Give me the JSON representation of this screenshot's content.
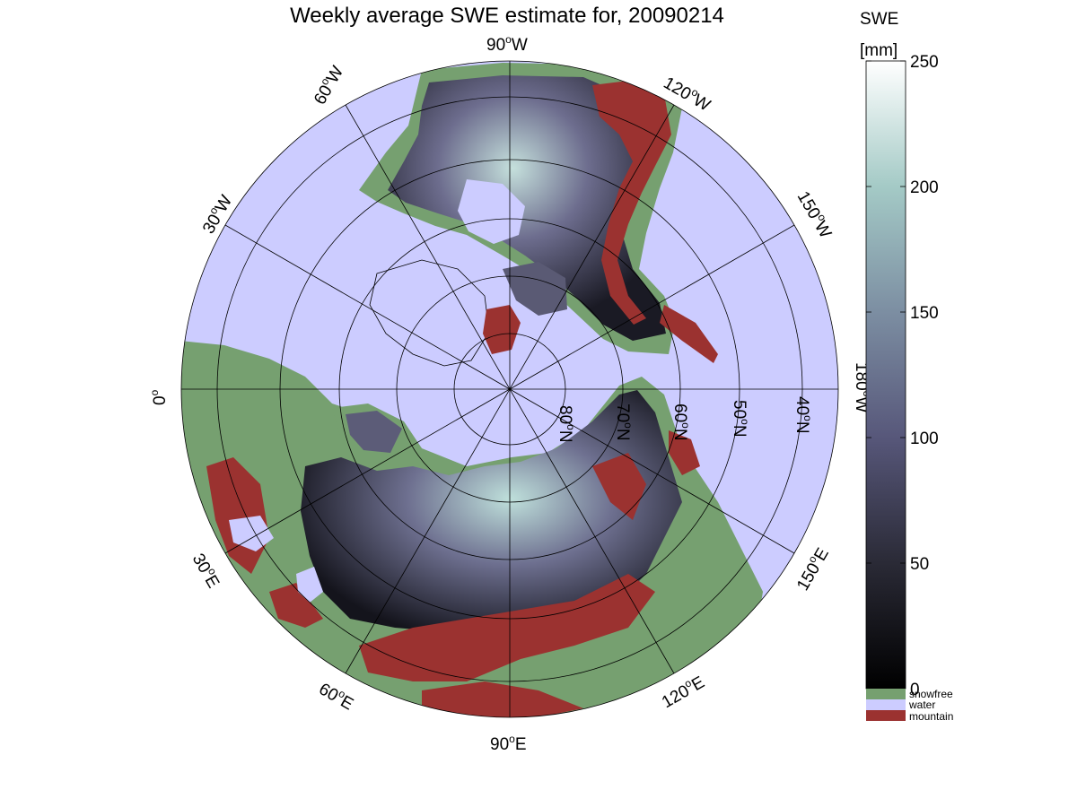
{
  "title": "Weekly average SWE estimate for, 20090214",
  "colorbar": {
    "title_line1": "SWE",
    "title_line2": "[mm]",
    "ticks": [
      "0",
      "50",
      "100",
      "150",
      "200",
      "250"
    ],
    "range": [
      0,
      250
    ],
    "categories": [
      {
        "label": "snowfree",
        "color": "#76a070"
      },
      {
        "label": "water",
        "color": "#ccccff"
      },
      {
        "label": "mountain",
        "color": "#9b3230"
      }
    ]
  },
  "map": {
    "projection": "north polar stereographic",
    "longitude_labels": {
      "lon_90W": {
        "deg": "90",
        "dir": "W"
      },
      "lon_60W": {
        "deg": "60",
        "dir": "W"
      },
      "lon_120W": {
        "deg": "120",
        "dir": "W"
      },
      "lon_30W": {
        "deg": "30",
        "dir": "W"
      },
      "lon_150W": {
        "deg": "150",
        "dir": "W"
      },
      "lon_0": {
        "deg": "0",
        "dir": ""
      },
      "lon_180W": {
        "deg": "180",
        "dir": "W"
      },
      "lon_30E": {
        "deg": "30",
        "dir": "E"
      },
      "lon_150E": {
        "deg": "150",
        "dir": "E"
      },
      "lon_60E": {
        "deg": "60",
        "dir": "E"
      },
      "lon_120E": {
        "deg": "120",
        "dir": "E"
      },
      "lon_90E": {
        "deg": "90",
        "dir": "E"
      }
    },
    "latitude_labels": {
      "lat_80N": {
        "deg": "80",
        "dir": "N"
      },
      "lat_70N": {
        "deg": "70",
        "dir": "N"
      },
      "lat_60N": {
        "deg": "60",
        "dir": "N"
      },
      "lat_50N": {
        "deg": "50",
        "dir": "N"
      },
      "lat_40N": {
        "deg": "40",
        "dir": "N"
      }
    },
    "colors": {
      "water": "#ccccff",
      "snowfree": "#76a070",
      "mountain": "#9b3230",
      "swe_low": "#0e0e12",
      "swe_mid": "#6c6c8a",
      "swe_high": "#b9dcd8"
    }
  }
}
